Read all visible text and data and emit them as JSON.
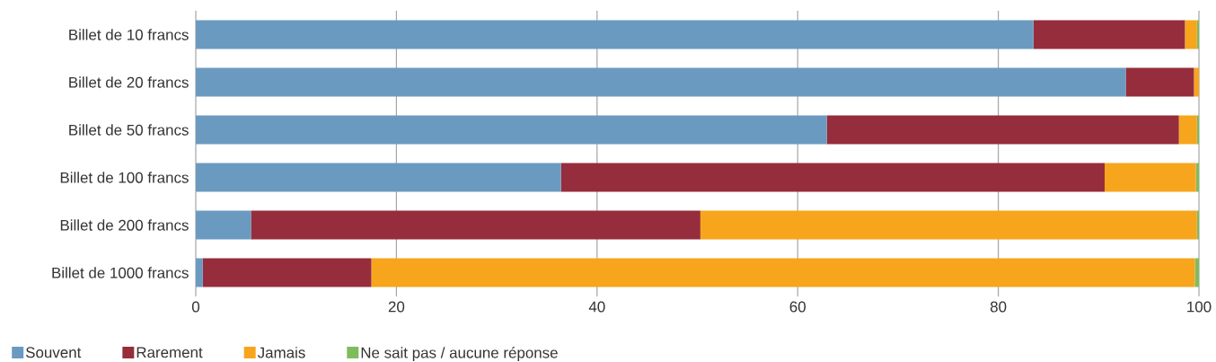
{
  "chart_data": {
    "type": "bar",
    "orientation": "horizontal",
    "stacked": true,
    "categories": [
      "Billet de 10 francs",
      "Billet de 20 francs",
      "Billet de 50 francs",
      "Billet de 100 francs",
      "Billet de 200 francs",
      "Billet de 1000 francs"
    ],
    "series": [
      {
        "name": "Souvent",
        "color": "#6b9ac1",
        "values": [
          83.5,
          92.7,
          62.9,
          36.4,
          5.5,
          0.7
        ]
      },
      {
        "name": "Rarement",
        "color": "#962d3c",
        "values": [
          15.1,
          6.8,
          35.1,
          54.2,
          44.8,
          16.8
        ]
      },
      {
        "name": "Jamais",
        "color": "#f7a51c",
        "values": [
          1.2,
          0.5,
          1.8,
          9.1,
          49.5,
          82.1
        ]
      },
      {
        "name": "Ne sait pas / aucune réponse",
        "color": "#7fbc5c",
        "values": [
          0.2,
          0,
          0.2,
          0.3,
          0.2,
          0.4
        ]
      }
    ],
    "xlim": [
      0,
      100
    ],
    "xticks": [
      0,
      20,
      40,
      60,
      80,
      100
    ],
    "grid": "x",
    "legend": "bottom left"
  }
}
